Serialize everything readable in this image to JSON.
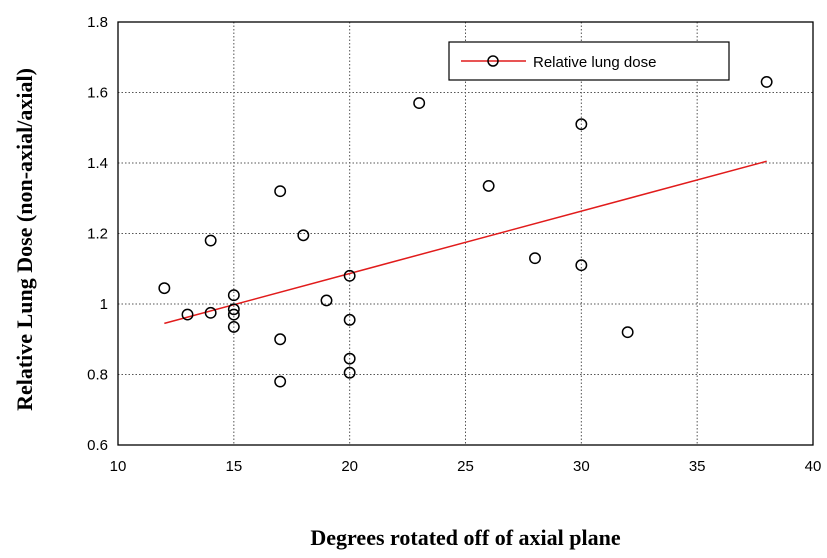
{
  "chart_data": {
    "type": "scatter",
    "xlabel": "Degrees rotated off of axial plane",
    "ylabel": "Relative Lung Dose (non-axial/axial)",
    "xlim": [
      10,
      40
    ],
    "ylim": [
      0.6,
      1.8
    ],
    "xticks": [
      10,
      15,
      20,
      25,
      30,
      35,
      40
    ],
    "yticks": [
      0.6,
      0.8,
      1,
      1.2,
      1.4,
      1.6,
      1.8
    ],
    "xtick_labels": [
      "10",
      "15",
      "20",
      "25",
      "30",
      "35",
      "40"
    ],
    "ytick_labels": [
      "0.6",
      "0.8",
      "1",
      "1.2",
      "1.4",
      "1.6",
      "1.8"
    ],
    "grid": true,
    "legend_position": "top-right",
    "series": [
      {
        "name": "Relative lung dose",
        "color": "#e11b1b",
        "marker": "open-circle",
        "points": [
          {
            "x": 12,
            "y": 1.045
          },
          {
            "x": 13,
            "y": 0.97
          },
          {
            "x": 14,
            "y": 1.18
          },
          {
            "x": 14,
            "y": 0.975
          },
          {
            "x": 15,
            "y": 1.025
          },
          {
            "x": 15,
            "y": 0.985
          },
          {
            "x": 15,
            "y": 0.97
          },
          {
            "x": 15,
            "y": 0.935
          },
          {
            "x": 17,
            "y": 1.32
          },
          {
            "x": 17,
            "y": 0.9
          },
          {
            "x": 17,
            "y": 0.78
          },
          {
            "x": 18,
            "y": 1.195
          },
          {
            "x": 19,
            "y": 1.01
          },
          {
            "x": 20,
            "y": 1.08
          },
          {
            "x": 20,
            "y": 0.955
          },
          {
            "x": 20,
            "y": 0.845
          },
          {
            "x": 20,
            "y": 0.805
          },
          {
            "x": 23,
            "y": 1.57
          },
          {
            "x": 26,
            "y": 1.335
          },
          {
            "x": 28,
            "y": 1.13
          },
          {
            "x": 30,
            "y": 1.51
          },
          {
            "x": 30,
            "y": 1.11
          },
          {
            "x": 32,
            "y": 0.92
          },
          {
            "x": 38,
            "y": 1.63
          }
        ]
      }
    ],
    "trendline": {
      "color": "#e11b1b",
      "x": [
        12,
        38
      ],
      "y": [
        0.945,
        1.405
      ]
    }
  }
}
